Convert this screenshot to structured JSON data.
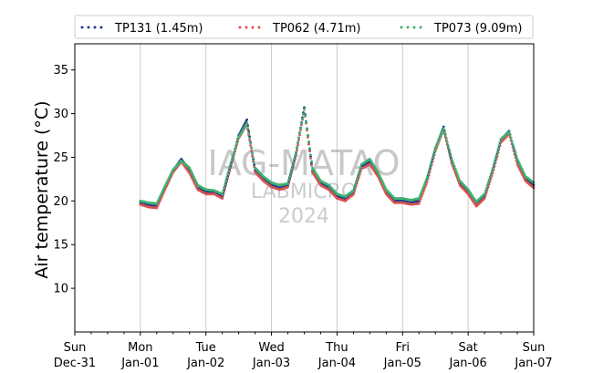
{
  "chart_data": {
    "type": "scatter",
    "title": "",
    "xlabel": "",
    "ylabel": "Air temperature (°C)",
    "xlim": [
      "2023-12-31",
      "2024-01-07"
    ],
    "ylim": [
      5,
      38
    ],
    "yticks": [
      10,
      15,
      20,
      25,
      30,
      35
    ],
    "xticks": [
      {
        "date": "2023-12-31",
        "day": "Sun",
        "label": "Dec-31"
      },
      {
        "date": "2024-01-01",
        "day": "Mon",
        "label": "Jan-01"
      },
      {
        "date": "2024-01-02",
        "day": "Tue",
        "label": "Jan-02"
      },
      {
        "date": "2024-01-03",
        "day": "Wed",
        "label": "Jan-03"
      },
      {
        "date": "2024-01-04",
        "day": "Thu",
        "label": "Jan-04"
      },
      {
        "date": "2024-01-05",
        "day": "Fri",
        "label": "Jan-05"
      },
      {
        "date": "2024-01-06",
        "day": "Sat",
        "label": "Jan-06"
      },
      {
        "date": "2024-01-07",
        "day": "Sun",
        "label": "Jan-07"
      }
    ],
    "grid": "vertical",
    "legend_position": "top",
    "watermark": [
      "IAG-MATAO",
      "LABMICRO",
      "2024"
    ],
    "series": [
      {
        "name": "TP131 (1.45m)",
        "color": "#1f3f8f",
        "points": [
          [
            "2024-01-01 00:00",
            19.8
          ],
          [
            "2024-01-01 03:00",
            19.5
          ],
          [
            "2024-01-01 06:00",
            19.4
          ],
          [
            "2024-01-01 09:00",
            21.5
          ],
          [
            "2024-01-01 12:00",
            23.5
          ],
          [
            "2024-01-01 15:00",
            24.8
          ],
          [
            "2024-01-01 18:00",
            23.5
          ],
          [
            "2024-01-01 21:00",
            21.5
          ],
          [
            "2024-01-02 00:00",
            21.0
          ],
          [
            "2024-01-02 03:00",
            21.0
          ],
          [
            "2024-01-02 06:00",
            20.5
          ],
          [
            "2024-01-02 09:00",
            24.0
          ],
          [
            "2024-01-02 12:00",
            27.5
          ],
          [
            "2024-01-02 15:00",
            29.3
          ],
          [
            "2024-01-02 18:00",
            23.5
          ],
          [
            "2024-01-02 21:00",
            22.5
          ],
          [
            "2024-01-03 00:00",
            21.8
          ],
          [
            "2024-01-03 03:00",
            21.5
          ],
          [
            "2024-01-03 06:00",
            21.8
          ],
          [
            "2024-01-03 09:00",
            25.5
          ],
          [
            "2024-01-03 12:00",
            30.7
          ],
          [
            "2024-01-03 15:00",
            23.5
          ],
          [
            "2024-01-03 18:00",
            22.0
          ],
          [
            "2024-01-03 21:00",
            21.5
          ],
          [
            "2024-01-04 00:00",
            20.5
          ],
          [
            "2024-01-04 03:00",
            20.2
          ],
          [
            "2024-01-04 06:00",
            21.0
          ],
          [
            "2024-01-04 09:00",
            24.0
          ],
          [
            "2024-01-04 12:00",
            24.5
          ],
          [
            "2024-01-04 15:00",
            23.0
          ],
          [
            "2024-01-04 18:00",
            21.0
          ],
          [
            "2024-01-04 21:00",
            20.0
          ],
          [
            "2024-01-05 00:00",
            20.0
          ],
          [
            "2024-01-05 03:00",
            19.8
          ],
          [
            "2024-01-05 06:00",
            20.0
          ],
          [
            "2024-01-05 09:00",
            22.5
          ],
          [
            "2024-01-05 12:00",
            26.0
          ],
          [
            "2024-01-05 15:00",
            28.5
          ],
          [
            "2024-01-05 18:00",
            24.5
          ],
          [
            "2024-01-05 21:00",
            22.0
          ],
          [
            "2024-01-06 00:00",
            21.0
          ],
          [
            "2024-01-06 03:00",
            19.5
          ],
          [
            "2024-01-06 06:00",
            20.5
          ],
          [
            "2024-01-06 09:00",
            23.5
          ],
          [
            "2024-01-06 12:00",
            27.0
          ],
          [
            "2024-01-06 15:00",
            28.0
          ],
          [
            "2024-01-06 18:00",
            24.5
          ],
          [
            "2024-01-06 21:00",
            22.5
          ],
          [
            "2024-01-07 00:00",
            21.8
          ]
        ]
      },
      {
        "name": "TP062 (4.71m)",
        "color": "#d9534f",
        "points": [
          [
            "2024-01-01 00:00",
            19.6
          ],
          [
            "2024-01-01 03:00",
            19.3
          ],
          [
            "2024-01-01 06:00",
            19.2
          ],
          [
            "2024-01-01 09:00",
            21.3
          ],
          [
            "2024-01-01 12:00",
            23.3
          ],
          [
            "2024-01-01 15:00",
            24.5
          ],
          [
            "2024-01-01 18:00",
            23.2
          ],
          [
            "2024-01-01 21:00",
            21.3
          ],
          [
            "2024-01-02 00:00",
            20.8
          ],
          [
            "2024-01-02 03:00",
            20.8
          ],
          [
            "2024-01-02 06:00",
            20.3
          ],
          [
            "2024-01-02 09:00",
            23.8
          ],
          [
            "2024-01-02 12:00",
            27.2
          ],
          [
            "2024-01-02 15:00",
            28.8
          ],
          [
            "2024-01-02 18:00",
            23.3
          ],
          [
            "2024-01-02 21:00",
            22.3
          ],
          [
            "2024-01-03 00:00",
            21.6
          ],
          [
            "2024-01-03 03:00",
            21.3
          ],
          [
            "2024-01-03 06:00",
            21.6
          ],
          [
            "2024-01-03 09:00",
            25.2
          ],
          [
            "2024-01-03 12:00",
            30.5
          ],
          [
            "2024-01-03 15:00",
            23.3
          ],
          [
            "2024-01-03 18:00",
            21.8
          ],
          [
            "2024-01-03 21:00",
            21.3
          ],
          [
            "2024-01-04 00:00",
            20.3
          ],
          [
            "2024-01-04 03:00",
            20.0
          ],
          [
            "2024-01-04 06:00",
            20.8
          ],
          [
            "2024-01-04 09:00",
            23.7
          ],
          [
            "2024-01-04 12:00",
            24.2
          ],
          [
            "2024-01-04 15:00",
            22.8
          ],
          [
            "2024-01-04 18:00",
            20.8
          ],
          [
            "2024-01-04 21:00",
            19.8
          ],
          [
            "2024-01-05 00:00",
            19.8
          ],
          [
            "2024-01-05 03:00",
            19.6
          ],
          [
            "2024-01-05 06:00",
            19.7
          ],
          [
            "2024-01-05 09:00",
            22.2
          ],
          [
            "2024-01-05 12:00",
            25.7
          ],
          [
            "2024-01-05 15:00",
            28.2
          ],
          [
            "2024-01-05 18:00",
            24.3
          ],
          [
            "2024-01-05 21:00",
            21.8
          ],
          [
            "2024-01-06 00:00",
            20.8
          ],
          [
            "2024-01-06 03:00",
            19.4
          ],
          [
            "2024-01-06 06:00",
            20.3
          ],
          [
            "2024-01-06 09:00",
            23.2
          ],
          [
            "2024-01-06 12:00",
            26.7
          ],
          [
            "2024-01-06 15:00",
            27.7
          ],
          [
            "2024-01-06 18:00",
            24.2
          ],
          [
            "2024-01-06 21:00",
            22.3
          ],
          [
            "2024-01-07 00:00",
            21.5
          ]
        ]
      },
      {
        "name": "TP073 (9.09m)",
        "color": "#3cb371",
        "points": [
          [
            "2024-01-01 00:00",
            20.0
          ],
          [
            "2024-01-01 03:00",
            19.8
          ],
          [
            "2024-01-01 06:00",
            19.7
          ],
          [
            "2024-01-01 09:00",
            21.7
          ],
          [
            "2024-01-01 12:00",
            23.6
          ],
          [
            "2024-01-01 15:00",
            24.6
          ],
          [
            "2024-01-01 18:00",
            23.8
          ],
          [
            "2024-01-01 21:00",
            21.8
          ],
          [
            "2024-01-02 00:00",
            21.3
          ],
          [
            "2024-01-02 03:00",
            21.2
          ],
          [
            "2024-01-02 06:00",
            20.8
          ],
          [
            "2024-01-02 09:00",
            24.2
          ],
          [
            "2024-01-02 12:00",
            27.3
          ],
          [
            "2024-01-02 15:00",
            28.9
          ],
          [
            "2024-01-02 18:00",
            23.8
          ],
          [
            "2024-01-02 21:00",
            22.8
          ],
          [
            "2024-01-03 00:00",
            22.1
          ],
          [
            "2024-01-03 03:00",
            21.8
          ],
          [
            "2024-01-03 06:00",
            22.0
          ],
          [
            "2024-01-03 09:00",
            25.6
          ],
          [
            "2024-01-03 12:00",
            30.5
          ],
          [
            "2024-01-03 15:00",
            23.8
          ],
          [
            "2024-01-03 18:00",
            22.3
          ],
          [
            "2024-01-03 21:00",
            21.8
          ],
          [
            "2024-01-04 00:00",
            20.8
          ],
          [
            "2024-01-04 03:00",
            20.5
          ],
          [
            "2024-01-04 06:00",
            21.2
          ],
          [
            "2024-01-04 09:00",
            24.2
          ],
          [
            "2024-01-04 12:00",
            24.8
          ],
          [
            "2024-01-04 15:00",
            23.3
          ],
          [
            "2024-01-04 18:00",
            21.3
          ],
          [
            "2024-01-04 21:00",
            20.3
          ],
          [
            "2024-01-05 00:00",
            20.3
          ],
          [
            "2024-01-05 03:00",
            20.1
          ],
          [
            "2024-01-05 06:00",
            20.3
          ],
          [
            "2024-01-05 09:00",
            22.7
          ],
          [
            "2024-01-05 12:00",
            26.1
          ],
          [
            "2024-01-05 15:00",
            28.3
          ],
          [
            "2024-01-05 18:00",
            24.8
          ],
          [
            "2024-01-05 21:00",
            22.3
          ],
          [
            "2024-01-06 00:00",
            21.3
          ],
          [
            "2024-01-06 03:00",
            19.9
          ],
          [
            "2024-01-06 06:00",
            20.8
          ],
          [
            "2024-01-06 09:00",
            23.7
          ],
          [
            "2024-01-06 12:00",
            27.1
          ],
          [
            "2024-01-06 15:00",
            27.9
          ],
          [
            "2024-01-06 18:00",
            24.8
          ],
          [
            "2024-01-06 21:00",
            22.8
          ],
          [
            "2024-01-07 00:00",
            22.1
          ]
        ]
      }
    ]
  }
}
